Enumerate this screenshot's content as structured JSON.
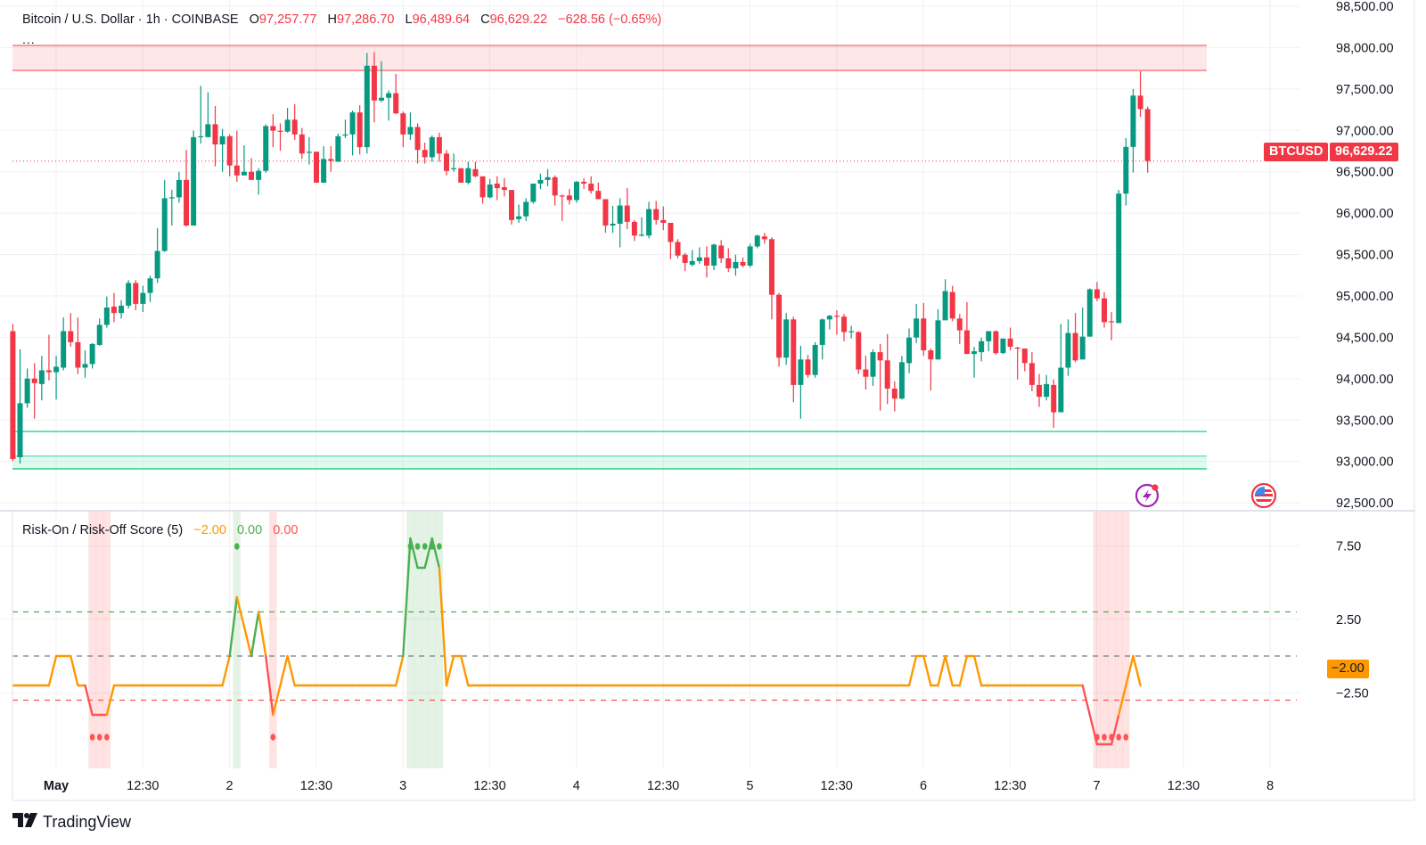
{
  "header": {
    "symbol": "Bitcoin / U.S. Dollar",
    "interval": "1h",
    "exchange": "COINBASE",
    "sep": "·",
    "open_label": "O",
    "open": "97,257.77",
    "high_label": "H",
    "high": "97,286.70",
    "low_label": "L",
    "low": "96,489.64",
    "close_label": "C",
    "close": "96,629.22",
    "change": "−628.56 (−0.65%)",
    "more": "..."
  },
  "last_price": {
    "ticker": "BTCUSD",
    "value": "96,629.22"
  },
  "indicator": {
    "title": "Risk-On / Risk-Off Score (5)",
    "value": "−2.00",
    "value_on": "0.00",
    "value_off": "0.00",
    "axis_badge": "−2.00"
  },
  "colors": {
    "up": "#089981",
    "down": "#F23645",
    "score": "#FF9800",
    "risk_on": "#4CAF50",
    "risk_off": "#FF5252",
    "event": "#9C27B0"
  },
  "icons": [
    "lightning-event-icon",
    "us-flag-icon",
    "tradingview-logo-icon"
  ],
  "branding": "TradingView",
  "chart_data": [
    {
      "type": "candlestick",
      "title": "Bitcoin / U.S. Dollar · 1h · COINBASE",
      "ylim": [
        92500,
        98500
      ],
      "yticks": [
        "98,500.00",
        "98,000.00",
        "97,500.00",
        "97,000.00",
        "96,500.00",
        "96,000.00",
        "95,500.00",
        "95,000.00",
        "94,500.00",
        "94,000.00",
        "93,500.00",
        "93,000.00",
        "92,500.00"
      ],
      "xticks": [
        {
          "label": "May",
          "bold": true
        },
        {
          "label": "12:30"
        },
        {
          "label": "2"
        },
        {
          "label": "12:30"
        },
        {
          "label": "3"
        },
        {
          "label": "12:30"
        },
        {
          "label": "4"
        },
        {
          "label": "12:30"
        },
        {
          "label": "5"
        },
        {
          "label": "12:30"
        },
        {
          "label": "6"
        },
        {
          "label": "12:30"
        },
        {
          "label": "7"
        },
        {
          "label": "12:30"
        },
        {
          "label": "8"
        }
      ],
      "grid": true,
      "current_price": 96629.22,
      "resistance_zone": [
        97724,
        98026
      ],
      "support_line": 93362,
      "support_zone": [
        92910,
        93065
      ],
      "ohlc_fields": [
        "open",
        "high",
        "low",
        "close"
      ],
      "candles": [
        [
          94574,
          94661,
          93006,
          93029
        ],
        [
          93051,
          94353,
          92973,
          93703
        ],
        [
          93703,
          94122,
          93648,
          94001
        ],
        [
          94001,
          94188,
          93517,
          93946
        ],
        [
          93935,
          94276,
          93737,
          94101
        ],
        [
          94101,
          94530,
          93979,
          94078
        ],
        [
          94078,
          94276,
          93748,
          94144
        ],
        [
          94133,
          94738,
          94100,
          94574
        ],
        [
          94574,
          94793,
          94386,
          94441
        ],
        [
          94441,
          94738,
          94056,
          94133
        ],
        [
          94133,
          94342,
          94012,
          94177
        ],
        [
          94177,
          94430,
          94122,
          94419
        ],
        [
          94408,
          94727,
          94397,
          94650
        ],
        [
          94650,
          94992,
          94617,
          94860
        ],
        [
          94871,
          95036,
          94683,
          94793
        ],
        [
          94793,
          94948,
          94727,
          94882
        ],
        [
          94882,
          95190,
          94849,
          95156
        ],
        [
          95156,
          95190,
          94827,
          94904
        ],
        [
          94904,
          95123,
          94805,
          95036
        ],
        [
          95036,
          95245,
          94926,
          95212
        ],
        [
          95212,
          95817,
          95156,
          95543
        ],
        [
          95543,
          96401,
          95532,
          96180
        ],
        [
          96180,
          96280,
          95850,
          96191
        ],
        [
          96191,
          96500,
          96125,
          96401
        ],
        [
          96401,
          96764,
          95839,
          95850
        ],
        [
          95850,
          96996,
          95850,
          96918
        ],
        [
          96918,
          97538,
          96841,
          96929
        ],
        [
          96918,
          97460,
          96918,
          97074
        ],
        [
          97074,
          97294,
          96565,
          96830
        ],
        [
          96830,
          97018,
          96500,
          96929
        ],
        [
          96929,
          96951,
          96445,
          96576
        ],
        [
          96576,
          96996,
          96379,
          96456
        ],
        [
          96456,
          96819,
          96456,
          96500
        ],
        [
          96500,
          96665,
          96401,
          96401
        ],
        [
          96401,
          96544,
          96224,
          96511
        ],
        [
          96511,
          97074,
          96489,
          97052
        ],
        [
          97052,
          97195,
          96797,
          96996
        ],
        [
          96996,
          97085,
          96753,
          96985
        ],
        [
          96985,
          97272,
          96974,
          97129
        ],
        [
          97129,
          97316,
          96885,
          96951
        ],
        [
          96951,
          97029,
          96654,
          96720
        ],
        [
          96731,
          96918,
          96587,
          96742
        ],
        [
          96742,
          96742,
          96368,
          96368
        ],
        [
          96368,
          96808,
          96368,
          96654
        ],
        [
          96654,
          96808,
          96500,
          96632
        ],
        [
          96621,
          96962,
          96621,
          96929
        ],
        [
          96940,
          97129,
          96907,
          96951
        ],
        [
          96951,
          97239,
          96698,
          97217
        ],
        [
          97217,
          97305,
          96709,
          96797
        ],
        [
          96797,
          97935,
          96720,
          97781
        ],
        [
          97781,
          97946,
          97096,
          97361
        ],
        [
          97361,
          97836,
          97339,
          97394
        ],
        [
          97394,
          97483,
          97118,
          97449
        ],
        [
          97449,
          97682,
          97195,
          97206
        ],
        [
          97206,
          97228,
          96797,
          96951
        ],
        [
          96951,
          97217,
          96885,
          97041
        ],
        [
          97041,
          97085,
          96598,
          96764
        ],
        [
          96764,
          96852,
          96598,
          96676
        ],
        [
          96676,
          96940,
          96621,
          96918
        ],
        [
          96918,
          96974,
          96621,
          96720
        ],
        [
          96720,
          96764,
          96455,
          96510
        ],
        [
          96532,
          96720,
          96499,
          96543
        ],
        [
          96543,
          96543,
          96368,
          96368
        ],
        [
          96368,
          96621,
          96346,
          96543
        ],
        [
          96532,
          96621,
          96434,
          96445
        ],
        [
          96445,
          96445,
          96114,
          96191
        ],
        [
          96191,
          96412,
          96180,
          96346
        ],
        [
          96357,
          96445,
          96158,
          96302
        ],
        [
          96313,
          96423,
          96202,
          96280
        ],
        [
          96280,
          96280,
          95861,
          95917
        ],
        [
          95928,
          96103,
          95883,
          95961
        ],
        [
          95961,
          96180,
          95906,
          96136
        ],
        [
          96136,
          96357,
          96114,
          96357
        ],
        [
          96357,
          96478,
          96291,
          96401
        ],
        [
          96401,
          96532,
          96324,
          96434
        ],
        [
          96434,
          96456,
          96092,
          96213
        ],
        [
          96213,
          96224,
          95906,
          96202
        ],
        [
          96213,
          96291,
          96103,
          96158
        ],
        [
          96158,
          96390,
          96125,
          96379
        ],
        [
          96379,
          96423,
          96291,
          96357
        ],
        [
          96357,
          96445,
          96236,
          96269
        ],
        [
          96269,
          96368,
          96169,
          96169
        ],
        [
          96169,
          96169,
          95762,
          95850
        ],
        [
          95850,
          96088,
          95762,
          95872
        ],
        [
          95872,
          96180,
          95587,
          96092
        ],
        [
          96092,
          96302,
          95806,
          95895
        ],
        [
          95895,
          95917,
          95663,
          95729
        ],
        [
          95729,
          95950,
          95718,
          95740
        ],
        [
          95729,
          96136,
          95696,
          96049
        ],
        [
          96049,
          96147,
          95861,
          95917
        ],
        [
          95917,
          96081,
          95795,
          95883
        ],
        [
          95883,
          95883,
          95443,
          95652
        ],
        [
          95652,
          95685,
          95454,
          95487
        ],
        [
          95498,
          95520,
          95300,
          95399
        ],
        [
          95377,
          95554,
          95355,
          95421
        ],
        [
          95421,
          95587,
          95388,
          95465
        ],
        [
          95465,
          95598,
          95223,
          95366
        ],
        [
          95366,
          95630,
          95311,
          95620
        ],
        [
          95609,
          95674,
          95399,
          95454
        ],
        [
          95454,
          95576,
          95289,
          95333
        ],
        [
          95333,
          95498,
          95245,
          95410
        ],
        [
          95410,
          95465,
          95344,
          95366
        ],
        [
          95366,
          95630,
          95344,
          95598
        ],
        [
          95598,
          95740,
          95576,
          95729
        ],
        [
          95718,
          95762,
          95630,
          95685
        ],
        [
          95686,
          95708,
          94716,
          95014
        ],
        [
          95014,
          95036,
          94144,
          94254
        ],
        [
          94254,
          94793,
          94166,
          94716
        ],
        [
          94716,
          94749,
          93715,
          93924
        ],
        [
          93924,
          94397,
          93517,
          94232
        ],
        [
          94232,
          94287,
          94012,
          94045
        ],
        [
          94045,
          94441,
          94012,
          94408
        ],
        [
          94408,
          94727,
          94232,
          94716
        ],
        [
          94716,
          94771,
          94595,
          94760
        ],
        [
          94760,
          94827,
          94530,
          94749
        ],
        [
          94749,
          94782,
          94452,
          94563
        ],
        [
          94563,
          94639,
          94485,
          94574
        ],
        [
          94563,
          94574,
          94056,
          94111
        ],
        [
          94111,
          94276,
          93869,
          94023
        ],
        [
          94023,
          94353,
          93913,
          94320
        ],
        [
          94320,
          94419,
          93615,
          94221
        ],
        [
          94221,
          94540,
          93692,
          93880
        ],
        [
          93880,
          93968,
          93605,
          93759
        ],
        [
          93759,
          94276,
          93748,
          94199
        ],
        [
          94188,
          94606,
          94067,
          94497
        ],
        [
          94497,
          94904,
          94430,
          94727
        ],
        [
          94727,
          94915,
          94276,
          94342
        ],
        [
          94342,
          94364,
          93858,
          94232
        ],
        [
          94232,
          94838,
          94232,
          94705
        ],
        [
          94705,
          95201,
          94705,
          95058
        ],
        [
          95047,
          95123,
          94694,
          94727
        ],
        [
          94727,
          94782,
          94419,
          94584
        ],
        [
          94584,
          94926,
          94298,
          94298
        ],
        [
          94298,
          94386,
          94012,
          94331
        ],
        [
          94320,
          94497,
          94210,
          94452
        ],
        [
          94452,
          94573,
          94331,
          94574
        ],
        [
          94574,
          94584,
          94287,
          94309
        ],
        [
          94309,
          94485,
          94298,
          94485
        ],
        [
          94485,
          94617,
          94342,
          94386
        ],
        [
          94375,
          94386,
          93990,
          94364
        ],
        [
          94364,
          94364,
          94089,
          94188
        ],
        [
          94188,
          94320,
          93847,
          93924
        ],
        [
          93924,
          94056,
          93659,
          93781
        ],
        [
          93781,
          94045,
          93737,
          93935
        ],
        [
          93924,
          93990,
          93407,
          93594
        ],
        [
          93594,
          94661,
          93594,
          94133
        ],
        [
          94133,
          94716,
          94034,
          94552
        ],
        [
          94552,
          94793,
          94199,
          94221
        ],
        [
          94232,
          94860,
          94232,
          94508
        ],
        [
          94508,
          95090,
          94508,
          95080
        ],
        [
          95080,
          95168,
          94937,
          94970
        ],
        [
          94970,
          95047,
          94617,
          94683
        ],
        [
          94694,
          94804,
          94464,
          94683
        ],
        [
          94672,
          96280,
          94672,
          96236
        ],
        [
          96236,
          96907,
          96092,
          96800
        ],
        [
          96800,
          97500,
          96490,
          97420
        ],
        [
          97420,
          97713,
          97164,
          97258
        ],
        [
          97257.77,
          97286.7,
          96489.64,
          96629.22
        ]
      ]
    },
    {
      "type": "line",
      "title": "Risk-On / Risk-Off Score (5)",
      "ylim": [
        -7,
        9
      ],
      "yticks": [
        "7.50",
        "2.50",
        "−2.50"
      ],
      "levels": {
        "risk_on": 3,
        "neutral": 0,
        "risk_off": -3
      },
      "values": [
        -2,
        -2,
        -2,
        -2,
        -2,
        -2,
        0,
        0,
        0,
        -2,
        -2,
        -4,
        -4,
        -4,
        -2,
        -2,
        -2,
        -2,
        -2,
        -2,
        -2,
        -2,
        -2,
        -2,
        -2,
        -2,
        -2,
        -2,
        -2,
        -2,
        0,
        4,
        2,
        0,
        3,
        0,
        -4,
        -2,
        0,
        -2,
        -2,
        -2,
        -2,
        -2,
        -2,
        -2,
        -2,
        -2,
        -2,
        -2,
        -2,
        -2,
        -2,
        -2,
        0,
        8,
        6,
        6,
        8,
        6,
        -2,
        0,
        0,
        -2,
        -2,
        -2,
        -2,
        -2,
        -2,
        -2,
        -2,
        -2,
        -2,
        -2,
        -2,
        -2,
        -2,
        -2,
        -2,
        -2,
        -2,
        -2,
        -2,
        -2,
        -2,
        -2,
        -2,
        -2,
        -2,
        -2,
        -2,
        -2,
        -2,
        -2,
        -2,
        -2,
        -2,
        -2,
        -2,
        -2,
        -2,
        -2,
        -2,
        -2,
        -2,
        -2,
        -2,
        -2,
        -2,
        -2,
        -2,
        -2,
        -2,
        -2,
        -2,
        -2,
        -2,
        -2,
        -2,
        -2,
        -2,
        -2,
        -2,
        -2,
        -2,
        0,
        0,
        -2,
        -2,
        0,
        -2,
        -2,
        0,
        0,
        -2,
        -2,
        -2,
        -2,
        -2,
        -2,
        -2,
        -2,
        -2,
        -2,
        -2,
        -2,
        -2,
        -2,
        -2,
        -4,
        -6,
        -6,
        -6,
        -4,
        -2,
        0,
        -2
      ],
      "risk_on_bars": [
        31,
        55,
        56,
        57,
        58,
        59
      ],
      "risk_off_bars": [
        11,
        12,
        13,
        36,
        150,
        151,
        152,
        153,
        154
      ]
    }
  ]
}
